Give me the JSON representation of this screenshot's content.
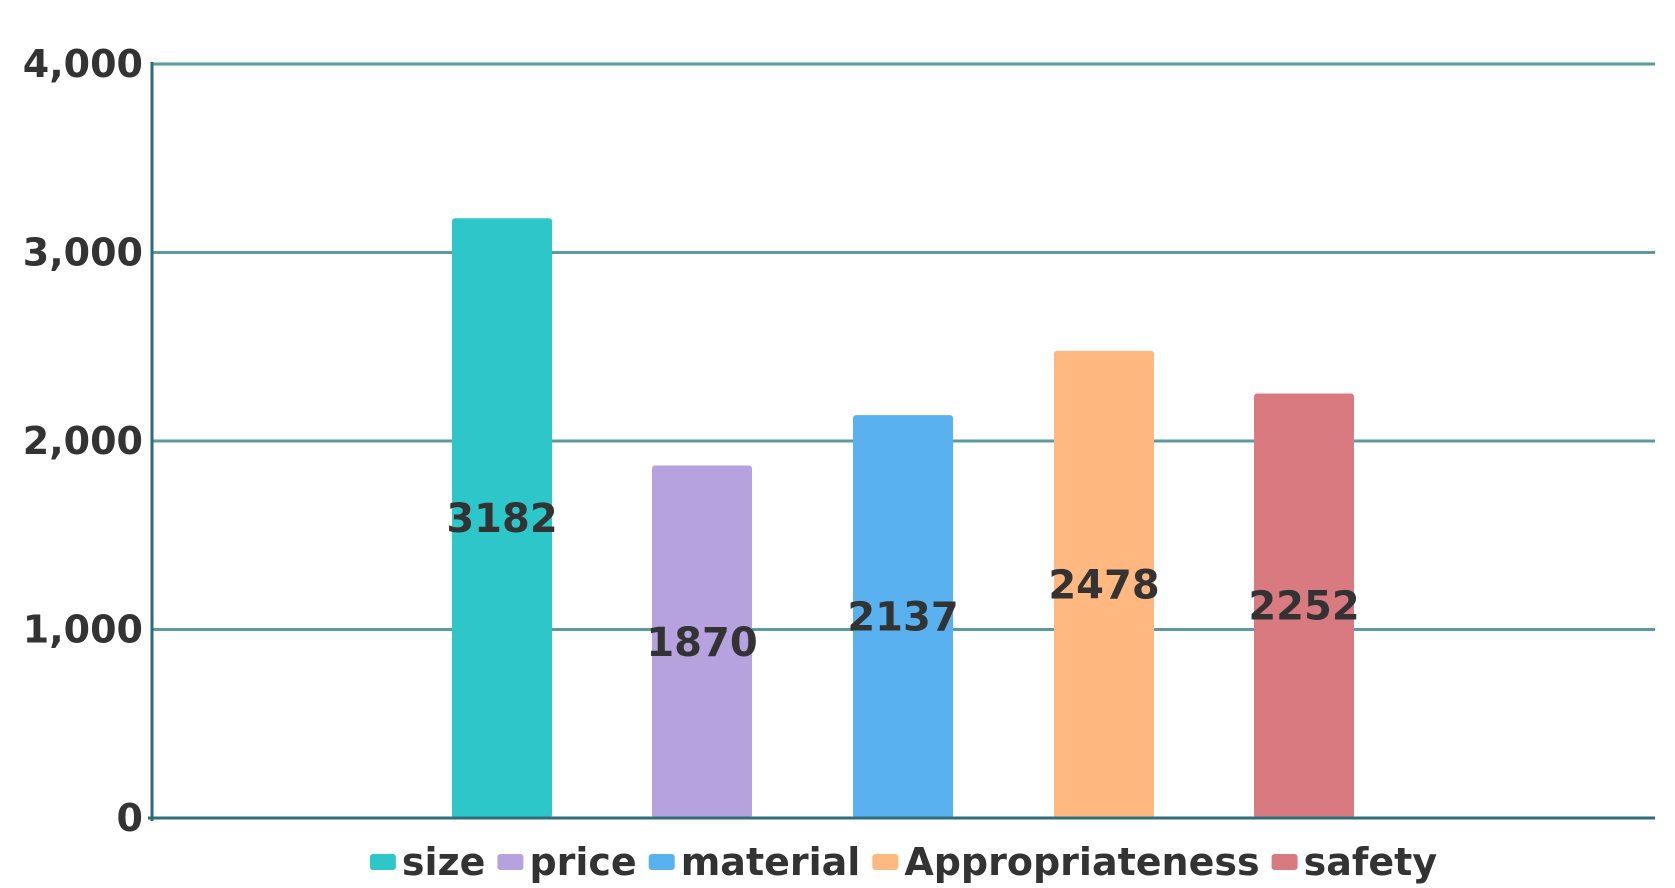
{
  "chart_data": {
    "type": "bar",
    "categories": [
      "size",
      "price",
      "material",
      "Appropriateness",
      "safety"
    ],
    "values": [
      3182,
      1870,
      2137,
      2478,
      2252
    ],
    "colors": [
      "#2ec7c9",
      "#b6a2de",
      "#5ab1ef",
      "#ffb980",
      "#d87a80"
    ],
    "data_labels": [
      "3182",
      "1870",
      "2137",
      "2478",
      "2252"
    ],
    "ylim": [
      0,
      4000
    ],
    "yticks": [
      0,
      1000,
      2000,
      3000,
      4000
    ],
    "ytick_labels": [
      "0",
      "1,000",
      "2,000",
      "3,000",
      "4,000"
    ],
    "grid": true,
    "grid_color": "#5b9aa0",
    "axis_color": "#2f6d7a",
    "legend_position": "bottom",
    "title": "",
    "xlabel": "",
    "ylabel": ""
  }
}
